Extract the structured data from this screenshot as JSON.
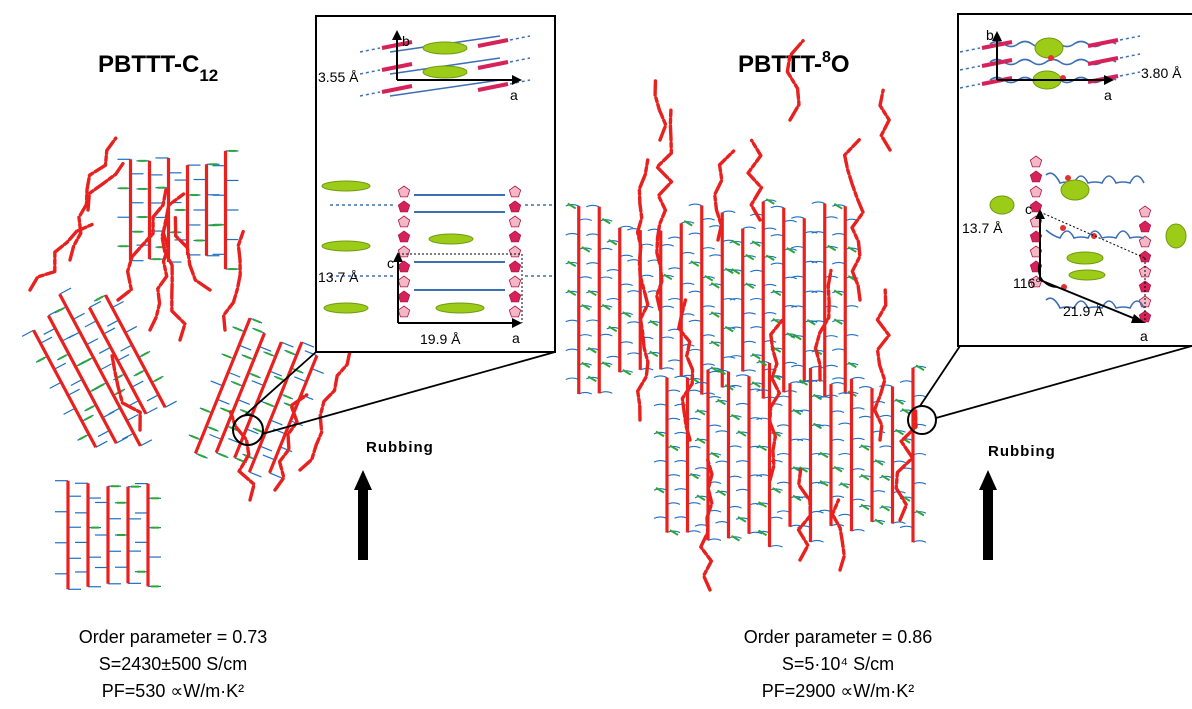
{
  "left": {
    "title_main": "PBTTT-C",
    "title_sub": "12",
    "rubbing": "Rubbing",
    "inset": {
      "b_axis": "b",
      "a_axis_top": "a",
      "spacing_top": "3.55 Å",
      "c_axis": "c",
      "spacing_vertical": "13.7 Å",
      "spacing_horizontal": "19.9 Å",
      "a_axis_bottom": "a"
    },
    "stats": {
      "order": "Order parameter = 0.73",
      "sigma": "S=2430±500 S/cm",
      "pf": "PF=530 ∝W/m·K²"
    }
  },
  "right": {
    "title_main": "PBTTT-",
    "title_sup": "8",
    "title_end": "O",
    "rubbing": "Rubbing",
    "inset": {
      "b_axis": "b",
      "a_axis_top": "a",
      "spacing_top": "3.80 Å",
      "c_axis": "c",
      "spacing_vertical": "13.7 Å",
      "angle": "116°",
      "spacing_horizontal": "21.9 Å",
      "a_axis_bottom": "a"
    },
    "stats": {
      "order": "Order parameter = 0.86",
      "sigma": "S=5·10⁴ S/cm",
      "pf": "PF=2900 ∝W/m·K²"
    }
  },
  "colors": {
    "backbone": "#e8211f",
    "side_chain": "#1d6fc4",
    "dopant": "#2aa834",
    "inset_backbone": "#d6225a",
    "inset_chain": "#3d6fb5",
    "dopant_molecule": "#9ccc18",
    "arrow": "#000000"
  }
}
